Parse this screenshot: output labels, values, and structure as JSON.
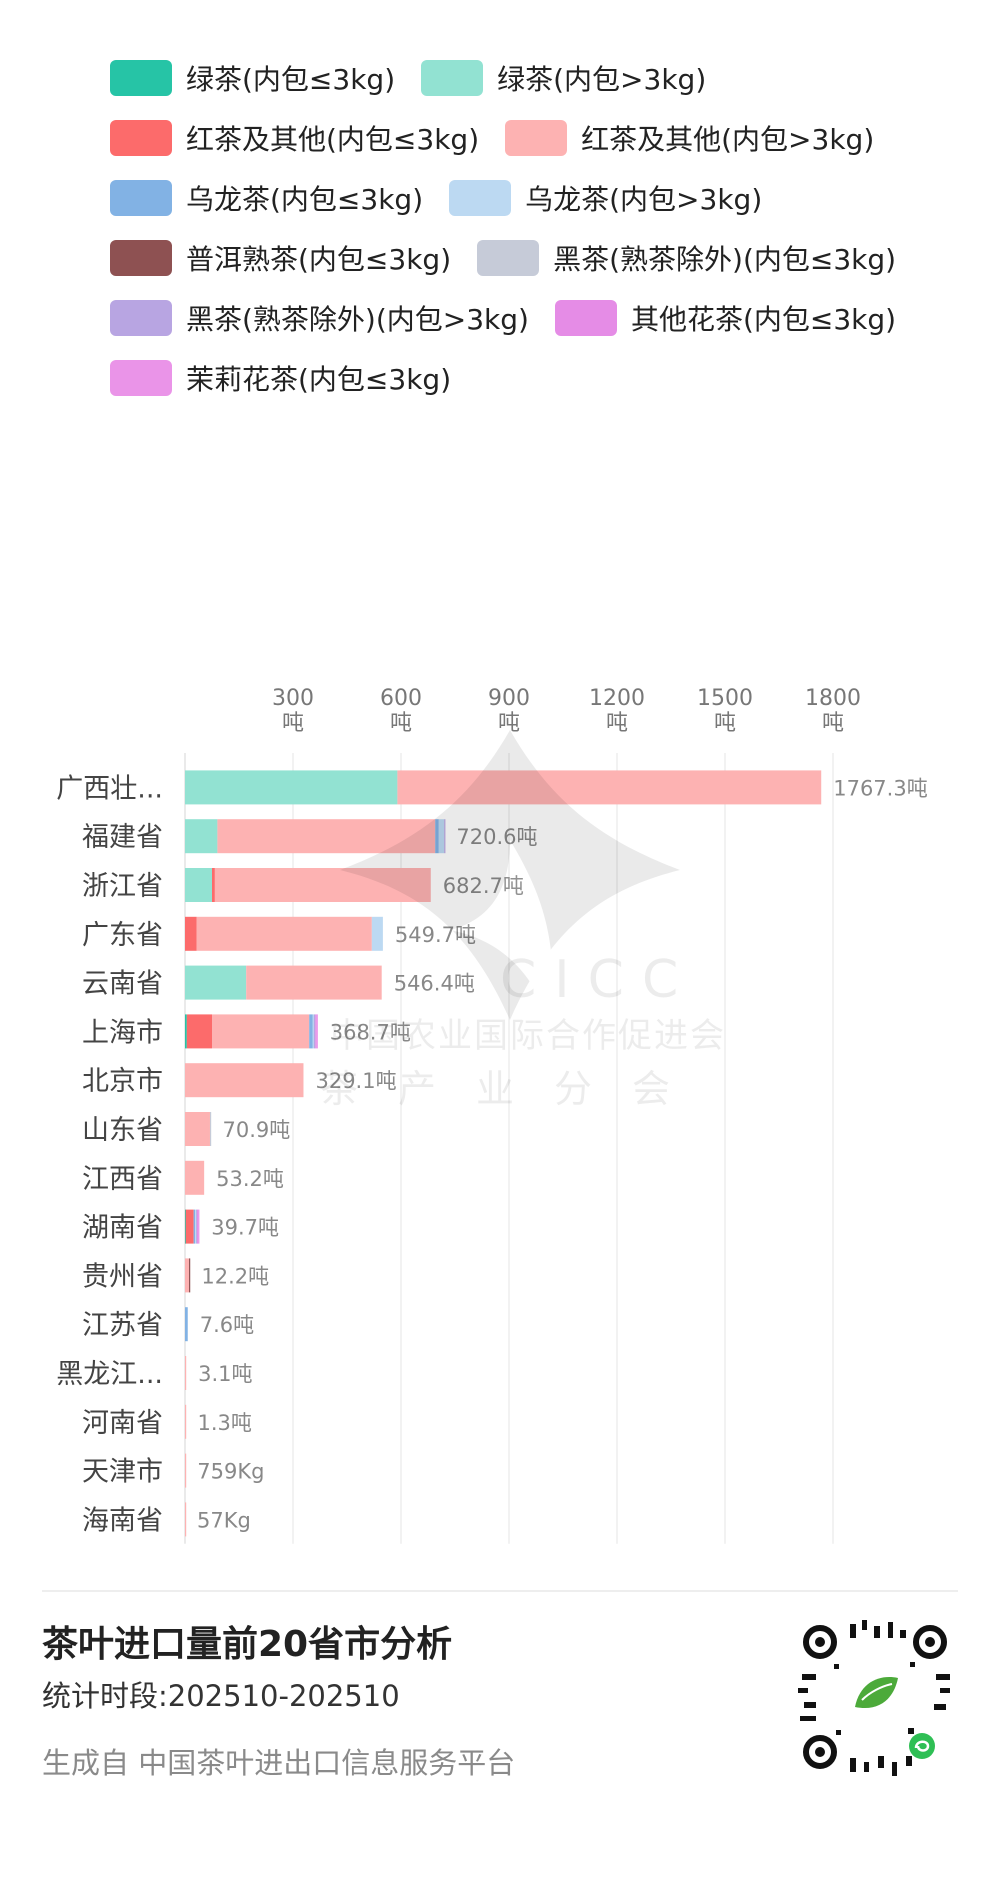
{
  "legend": [
    {
      "label": "绿茶(内包≤3kg)",
      "color": "#26c4a6"
    },
    {
      "label": "绿茶(内包>3kg)",
      "color": "#92e2d2"
    },
    {
      "label": "红茶及其他(内包≤3kg)",
      "color": "#fc6b6b"
    },
    {
      "label": "红茶及其他(内包>3kg)",
      "color": "#fdb2b2"
    },
    {
      "label": "乌龙茶(内包≤3kg)",
      "color": "#82b2e4"
    },
    {
      "label": "乌龙茶(内包>3kg)",
      "color": "#bcd9f2"
    },
    {
      "label": "普洱熟茶(内包≤3kg)",
      "color": "#8e5152"
    },
    {
      "label": "黑茶(熟茶除外)(内包≤3kg)",
      "color": "#c6cbd8"
    },
    {
      "label": "黑茶(熟茶除外)(内包>3kg)",
      "color": "#b8a5e2"
    },
    {
      "label": "其他花茶(内包≤3kg)",
      "color": "#e58ce6"
    },
    {
      "label": "茉莉花茶(内包≤3kg)",
      "color": "#ea94e8"
    }
  ],
  "chart_data": {
    "type": "bar",
    "orientation": "horizontal",
    "stacked": true,
    "unit": "吨",
    "xlim": [
      0,
      1800
    ],
    "x_ticks": [
      {
        "value": 300,
        "label": "300",
        "unit": "吨"
      },
      {
        "value": 600,
        "label": "600",
        "unit": "吨"
      },
      {
        "value": 900,
        "label": "900",
        "unit": "吨"
      },
      {
        "value": 1200,
        "label": "1200",
        "unit": "吨"
      },
      {
        "value": 1500,
        "label": "1500",
        "unit": "吨"
      },
      {
        "value": 1800,
        "label": "1800",
        "unit": "吨"
      }
    ],
    "grid": true,
    "legend_position": "top",
    "categories": [
      "广西壮...",
      "福建省",
      "浙江省",
      "广东省",
      "云南省",
      "上海市",
      "北京市",
      "山东省",
      "江西省",
      "湖南省",
      "贵州省",
      "江苏省",
      "黑龙江...",
      "河南省",
      "天津市",
      "海南省"
    ],
    "totals": [
      1767.3,
      720.6,
      682.7,
      549.7,
      546.4,
      368.7,
      329.1,
      70.9,
      53.2,
      39.7,
      12.2,
      7.6,
      3.1,
      1.3,
      0.759,
      0.057
    ],
    "total_labels": [
      "1767.3吨",
      "720.6吨",
      "682.7吨",
      "549.7吨",
      "546.4吨",
      "368.7吨",
      "329.1吨",
      "70.9吨",
      "53.2吨",
      "39.7吨",
      "12.2吨",
      "7.6吨",
      "3.1吨",
      "1.3吨",
      "759Kg",
      "57Kg"
    ],
    "series": [
      {
        "name": "绿茶(内包≤3kg)",
        "values": [
          0,
          0,
          0,
          0,
          0,
          5,
          0,
          0,
          0,
          2,
          0,
          0,
          0,
          0,
          0,
          0
        ]
      },
      {
        "name": "绿茶(内包>3kg)",
        "values": [
          590,
          90,
          75,
          0,
          170,
          0,
          0,
          0,
          0,
          0,
          0,
          0,
          0,
          0,
          0,
          0
        ]
      },
      {
        "name": "红茶及其他(内包≤3kg)",
        "values": [
          0,
          0,
          8,
          32,
          0,
          70,
          0,
          0,
          0,
          22,
          0,
          0,
          0,
          0,
          0,
          0
        ]
      },
      {
        "name": "红茶及其他(内包>3kg)",
        "values": [
          1177.3,
          605,
          599.7,
          487,
          376.4,
          270,
          329.1,
          69.4,
          53.2,
          0,
          11.2,
          0,
          3.1,
          1.3,
          0.759,
          0.057
        ]
      },
      {
        "name": "乌龙茶(内包≤3kg)",
        "values": [
          0,
          10,
          0,
          0,
          0,
          10,
          0,
          0,
          0,
          4,
          0,
          7.6,
          0,
          0,
          0,
          0
        ]
      },
      {
        "name": "乌龙茶(内包>3kg)",
        "values": [
          0,
          15,
          0,
          30.7,
          0,
          3,
          0,
          0,
          0,
          3,
          0,
          0,
          0,
          0,
          0,
          0
        ]
      },
      {
        "name": "普洱熟茶(内包≤3kg)",
        "values": [
          0,
          0,
          0,
          0,
          0,
          0,
          0,
          0,
          0,
          0,
          1,
          0,
          0,
          0,
          0,
          0
        ]
      },
      {
        "name": "黑茶(熟茶除外)(内包≤3kg)",
        "values": [
          0,
          0,
          0,
          0,
          0,
          0,
          0,
          1.5,
          0,
          0,
          0,
          0,
          0,
          0,
          0,
          0
        ]
      },
      {
        "name": "黑茶(熟茶除外)(内包>3kg)",
        "values": [
          0,
          0.6,
          0,
          0,
          0,
          4,
          0,
          0,
          0,
          2.7,
          0,
          0,
          0,
          0,
          0,
          0
        ]
      },
      {
        "name": "其他花茶(内包≤3kg)",
        "values": [
          0,
          0,
          0,
          0,
          0,
          3.7,
          0,
          0,
          0,
          3,
          0,
          0,
          0,
          0,
          0,
          0
        ]
      },
      {
        "name": "茉莉花茶(内包≤3kg)",
        "values": [
          0,
          0,
          0,
          0,
          0,
          3,
          0,
          0,
          0,
          3,
          0,
          0,
          0,
          0,
          0,
          0
        ]
      }
    ]
  },
  "watermark": {
    "line1": "中国农业国际合作促进会",
    "line2": "茶产业分会",
    "letters": "CICC"
  },
  "footer": {
    "title": "茶叶进口量前20省市分析",
    "period": "统计时段:202510-202510",
    "source": "生成自 中国茶叶进出口信息服务平台"
  },
  "icons": {
    "qr": "mini-program-qr-code-icon"
  }
}
